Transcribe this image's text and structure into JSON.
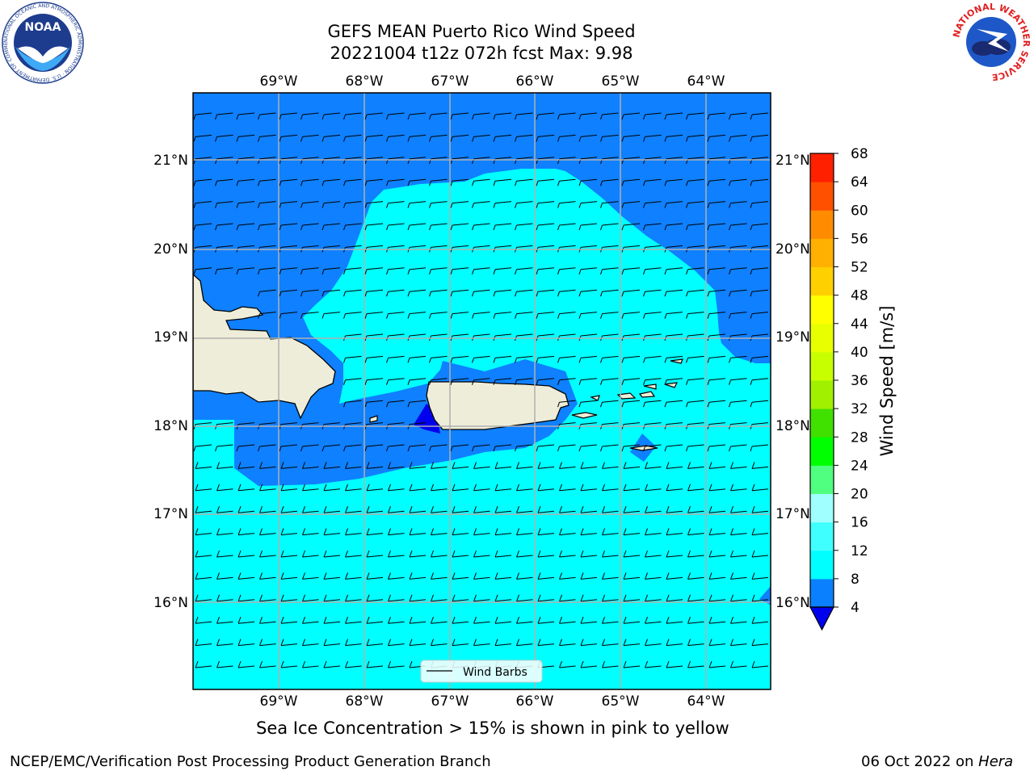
{
  "title": {
    "line1": "GEFS MEAN Puerto Rico Wind Speed",
    "line2": "20221004 t12z 072h fcst   Max: 9.98"
  },
  "map": {
    "lon_labels": [
      "69°W",
      "68°W",
      "67°W",
      "66°W",
      "65°W",
      "64°W"
    ],
    "lat_labels": [
      "21°N",
      "20°N",
      "19°N",
      "18°N",
      "17°N",
      "16°N"
    ],
    "legend_label": "Wind Barbs",
    "colors": {
      "land": "#eeedd9",
      "band_4_8": "#0f80ff",
      "band_8_12": "#00ffff",
      "below_4": "#0000ee",
      "grid": "#b0b0b0"
    }
  },
  "colorbar": {
    "label": "Wind Speed [m/s]",
    "ticks": [
      "4",
      "8",
      "12",
      "16",
      "20",
      "24",
      "28",
      "32",
      "36",
      "40",
      "44",
      "48",
      "52",
      "56",
      "60",
      "64",
      "68"
    ],
    "colors": [
      "#0a80ff",
      "#00ffff",
      "#40ffff",
      "#a0ffff",
      "#50ff80",
      "#00ff00",
      "#40e000",
      "#a0f000",
      "#c8ff00",
      "#e8ff00",
      "#ffff00",
      "#ffd000",
      "#ffb000",
      "#ff8c00",
      "#ff5000",
      "#ff2000",
      "#ff0000"
    ],
    "under_color": "#0000ee"
  },
  "captions": {
    "sea_ice": "Sea Ice Concentration > 15% is shown in pink to yellow",
    "branch": "NCEP/EMC/Verification Post Processing Product Generation Branch",
    "date_prefix": "06 Oct 2022 on ",
    "machine": "Hera"
  },
  "logos": {
    "noaa_text": "NOAA",
    "noaa_ring": "NATIONAL OCEANIC AND ATMOSPHERIC ADMINISTRATION · U.S. DEPARTMENT OF COMMERCE",
    "nws_ring": "NATIONAL WEATHER SERVICE"
  }
}
